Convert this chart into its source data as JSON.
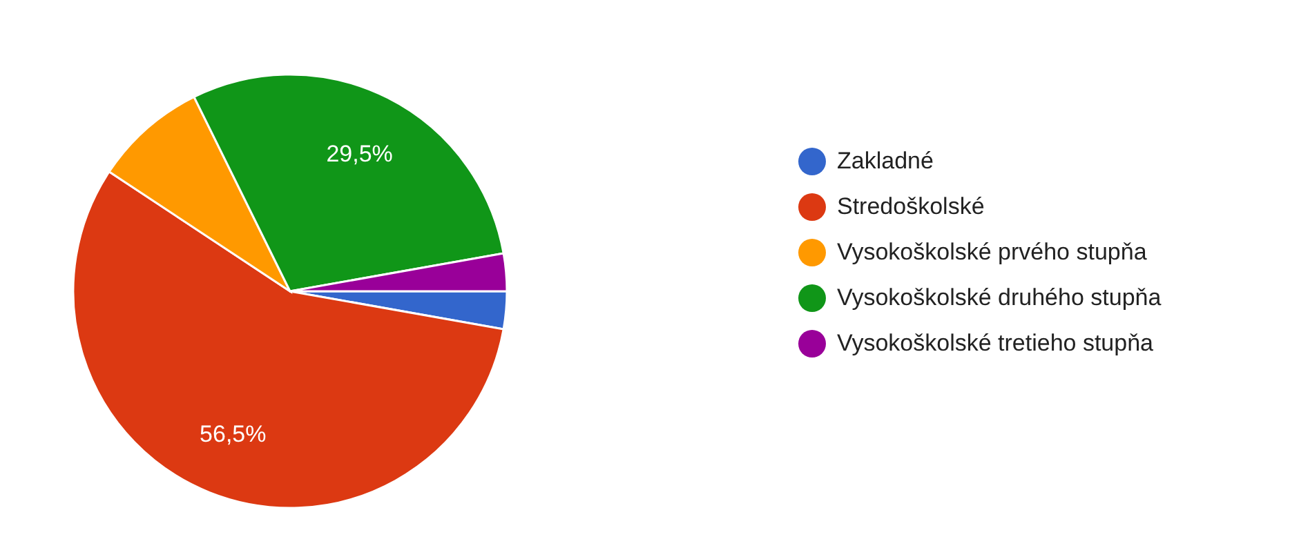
{
  "chart_data": {
    "type": "pie",
    "categories": [
      "Zakladné",
      "Stredoškolské",
      "Vysokoškolské prvého stupňa",
      "Vysokoškolské druhého stupňa",
      "Vysokoškolské tretieho stupňa"
    ],
    "values": [
      2.8,
      56.5,
      8.4,
      29.5,
      2.8
    ],
    "colors": [
      "#3366cc",
      "#dc3912",
      "#ff9900",
      "#109618",
      "#990099"
    ],
    "value_labels": [
      null,
      "56,5%",
      null,
      "29,5%",
      null
    ],
    "legend": "right"
  }
}
